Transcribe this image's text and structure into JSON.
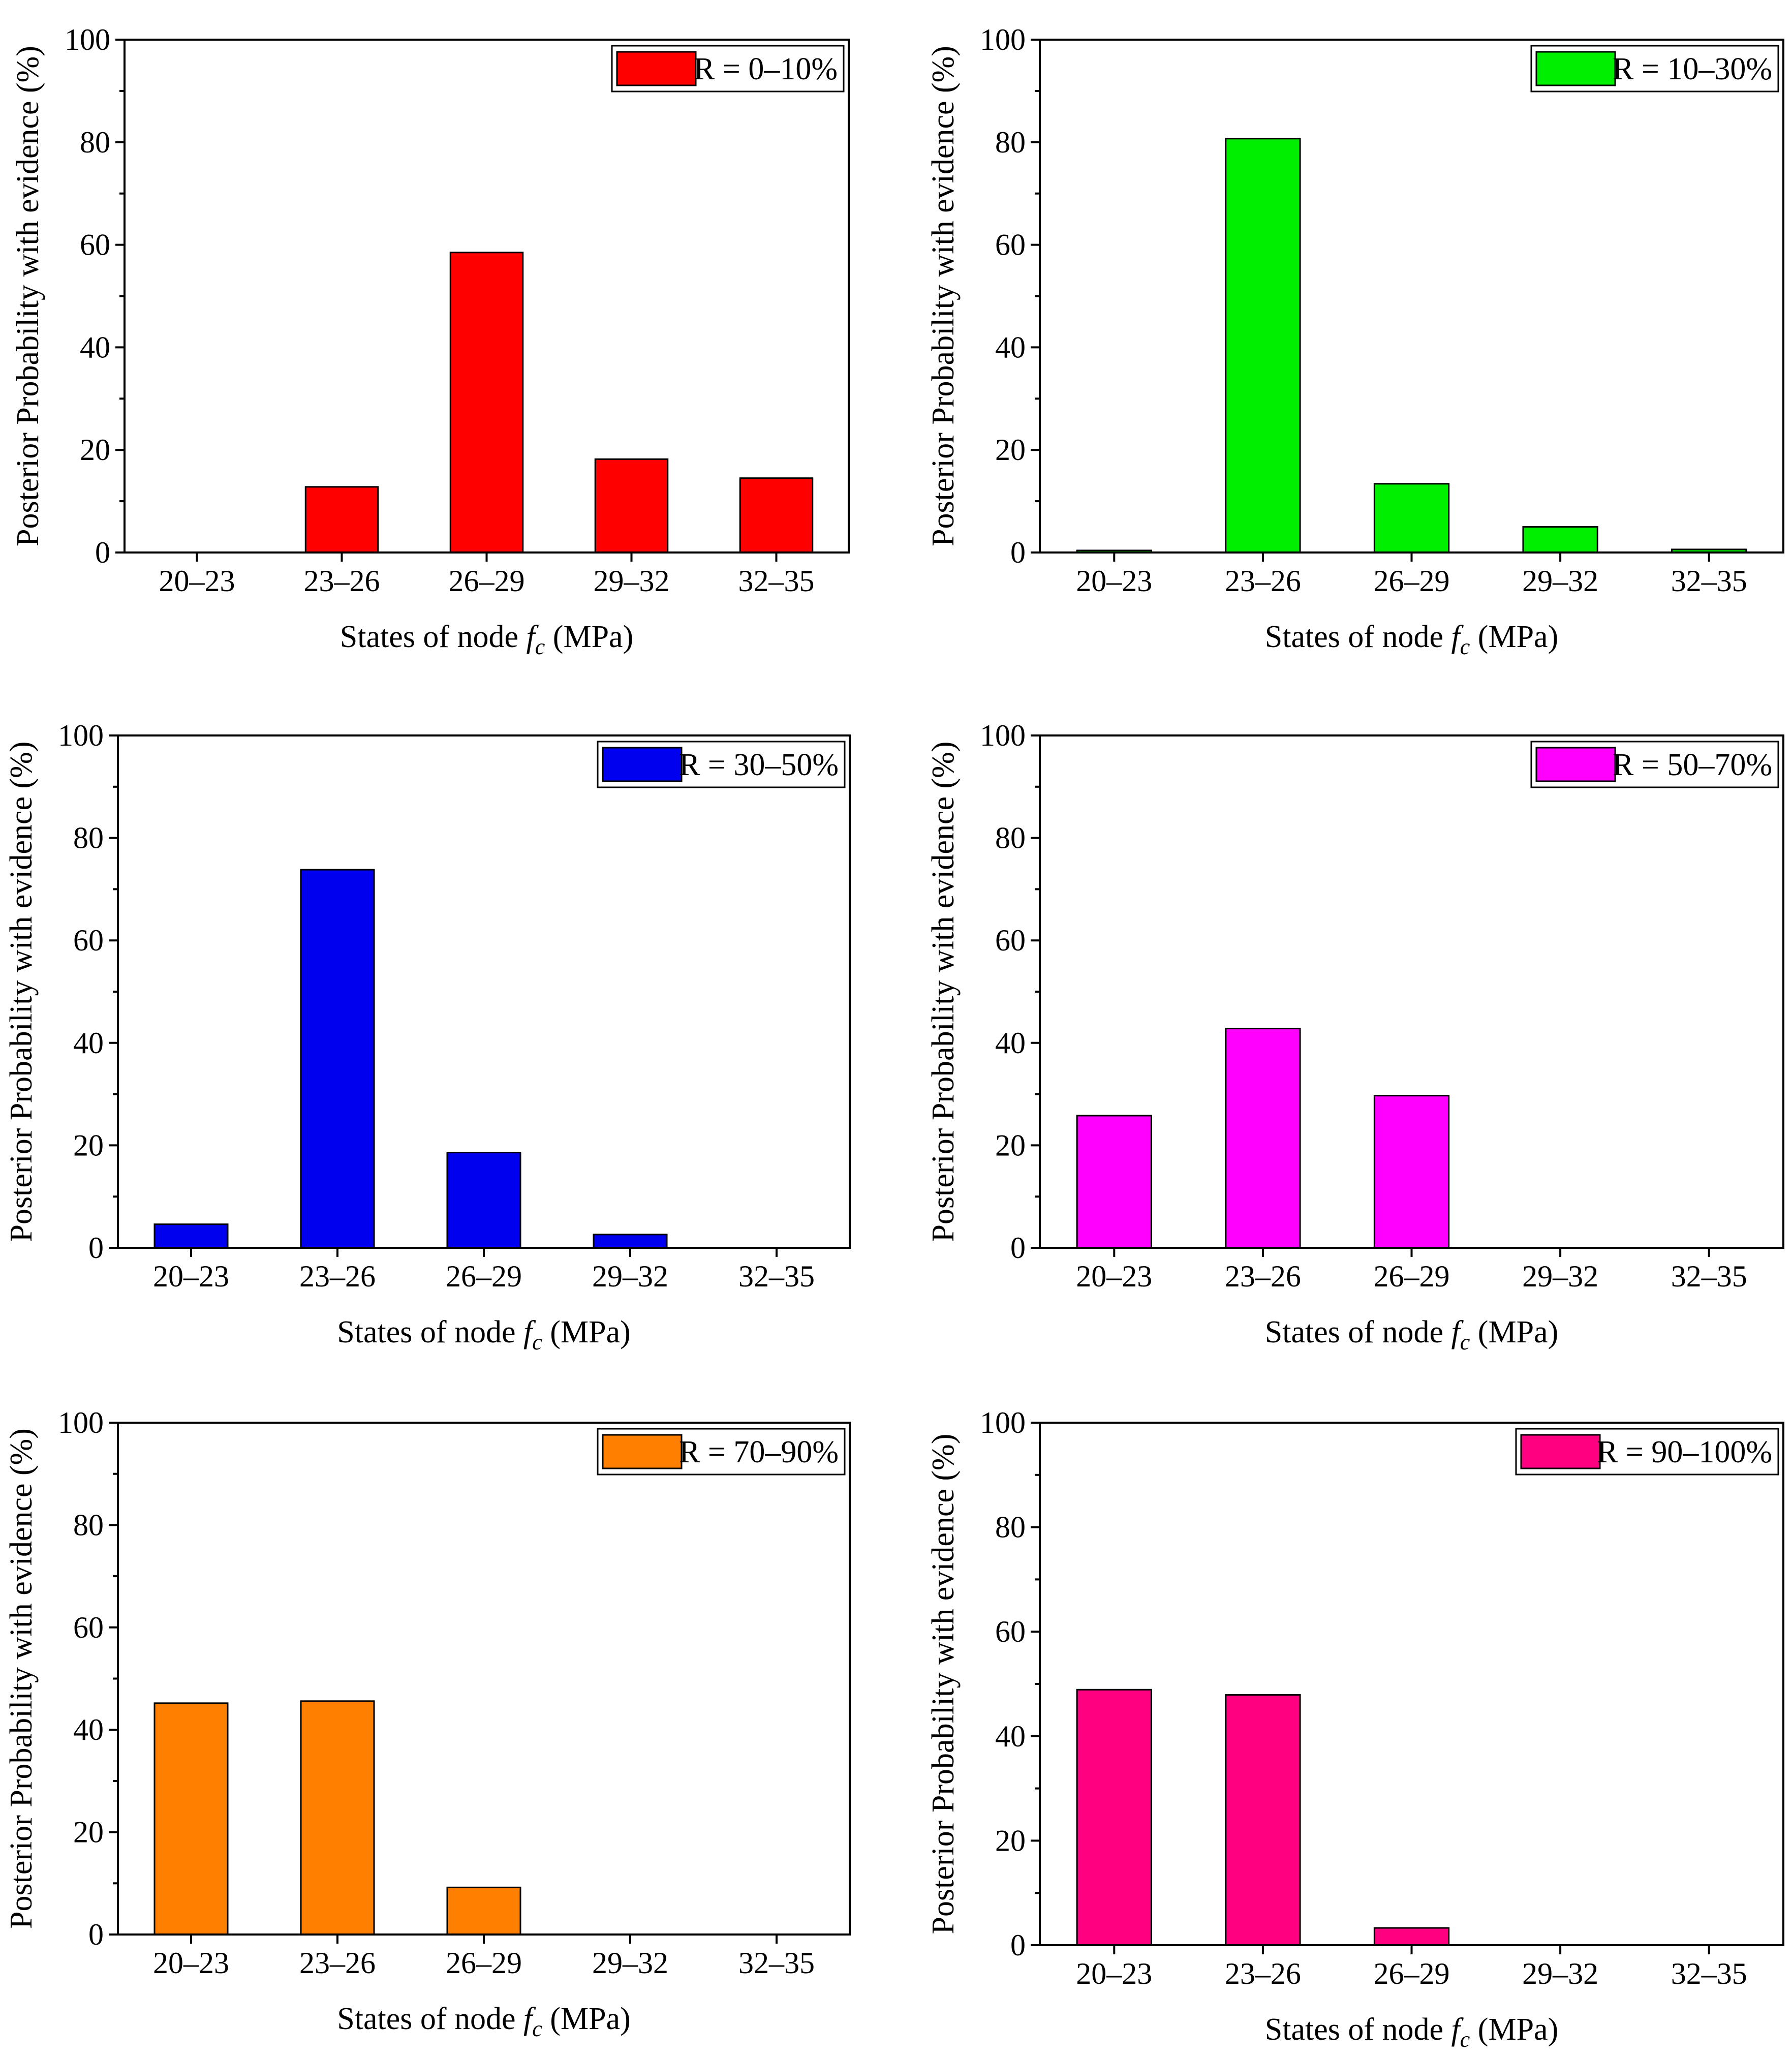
{
  "chart_data": [
    {
      "type": "bar",
      "categories": [
        "20–23",
        "23–26",
        "26–29",
        "29–32",
        "32–35"
      ],
      "values": [
        0,
        12.8,
        58.5,
        18.2,
        14.5
      ],
      "legend": "R = 0–10%",
      "color": "#ff0000",
      "xlabel_prefix": "States of node ",
      "xlabel_var": "f",
      "xlabel_sub": "c",
      "xlabel_suffix": " (MPa)",
      "ylabel": "Posterior Probability with evidence (%)",
      "ylim": [
        0,
        100
      ],
      "yticks": [
        "0",
        "20",
        "40",
        "60",
        "80",
        "100"
      ],
      "legend_position": "top-right"
    },
    {
      "type": "bar",
      "categories": [
        "20–23",
        "23–26",
        "26–29",
        "29–32",
        "32–35"
      ],
      "values": [
        0.4,
        80.7,
        13.4,
        5.0,
        0.6
      ],
      "legend": "R = 10–30%",
      "color": "#00ee00",
      "xlabel_prefix": "States of node ",
      "xlabel_var": "f",
      "xlabel_sub": "c",
      "xlabel_suffix": " (MPa)",
      "ylabel": "Posterior Probability with evidence (%)",
      "ylim": [
        0,
        100
      ],
      "yticks": [
        "0",
        "20",
        "40",
        "60",
        "80",
        "100"
      ],
      "legend_position": "top-right"
    },
    {
      "type": "bar",
      "categories": [
        "20–23",
        "23–26",
        "26–29",
        "29–32",
        "32–35"
      ],
      "values": [
        4.6,
        73.8,
        18.6,
        2.6,
        0
      ],
      "legend": "R = 30–50%",
      "color": "#0000ee",
      "xlabel_prefix": "States of node ",
      "xlabel_var": "f",
      "xlabel_sub": "c",
      "xlabel_suffix": " (MPa)",
      "ylabel": "Posterior Probability with evidence (%)",
      "ylim": [
        0,
        100
      ],
      "yticks": [
        "0",
        "20",
        "40",
        "60",
        "80",
        "100"
      ],
      "legend_position": "top-right"
    },
    {
      "type": "bar",
      "categories": [
        "20–23",
        "23–26",
        "26–29",
        "29–32",
        "32–35"
      ],
      "values": [
        25.8,
        42.8,
        29.7,
        0,
        0
      ],
      "legend": "R = 50–70%",
      "color": "#ff00ff",
      "xlabel_prefix": "States of node ",
      "xlabel_var": "f",
      "xlabel_sub": "c",
      "xlabel_suffix": " (MPa)",
      "ylabel": "Posterior Probability with evidence (%)",
      "ylim": [
        0,
        100
      ],
      "yticks": [
        "0",
        "20",
        "40",
        "60",
        "80",
        "100"
      ],
      "legend_position": "top-right"
    },
    {
      "type": "bar",
      "categories": [
        "20–23",
        "23–26",
        "26–29",
        "29–32",
        "32–35"
      ],
      "values": [
        45.2,
        45.6,
        9.2,
        0,
        0
      ],
      "legend": "R = 70–90%",
      "color": "#ff8000",
      "xlabel_prefix": "States of node ",
      "xlabel_var": "f",
      "xlabel_sub": "c",
      "xlabel_suffix": " (MPa)",
      "ylabel": "Posterior Probability with evidence (%)",
      "ylim": [
        0,
        100
      ],
      "yticks": [
        "0",
        "20",
        "40",
        "60",
        "80",
        "100"
      ],
      "legend_position": "top-right"
    },
    {
      "type": "bar",
      "categories": [
        "20–23",
        "23–26",
        "26–29",
        "29–32",
        "32–35"
      ],
      "values": [
        48.9,
        47.9,
        3.3,
        0,
        0
      ],
      "legend": "R = 90–100%",
      "color": "#ff0080",
      "xlabel_prefix": "States of node ",
      "xlabel_var": "f",
      "xlabel_sub": "c",
      "xlabel_suffix": " (MPa)",
      "ylabel": "Posterior Probability with evidence (%)",
      "ylim": [
        0,
        100
      ],
      "yticks": [
        "0",
        "20",
        "40",
        "60",
        "80",
        "100"
      ],
      "legend_position": "top-right"
    }
  ]
}
